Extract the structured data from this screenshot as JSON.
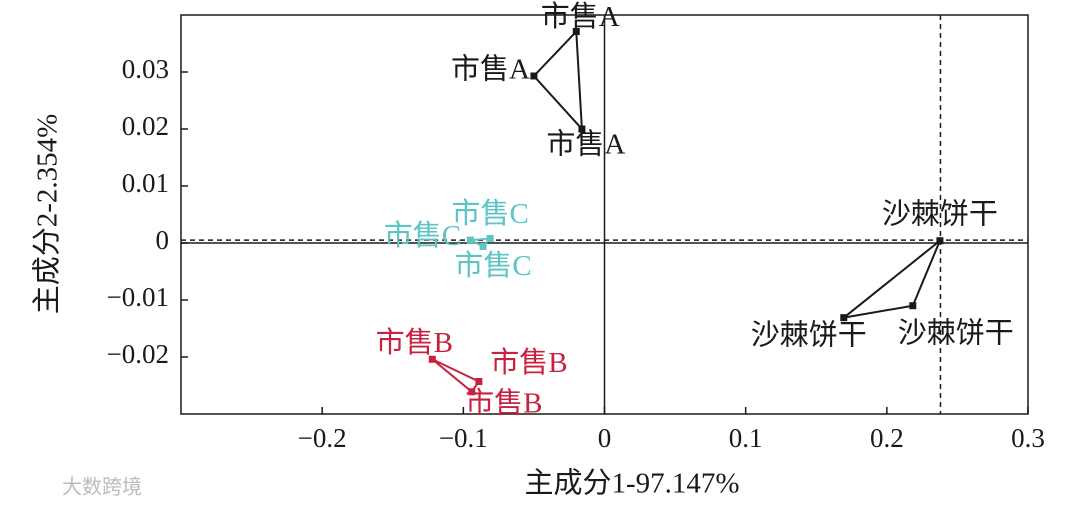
{
  "chart_data": {
    "type": "scatter",
    "x_label": "主成分1-97.147%",
    "y_label": "主成分2-2.354%",
    "xlim": [
      -0.3,
      0.3
    ],
    "ylim": [
      -0.03,
      0.04
    ],
    "xticks": [
      {
        "value": -0.2,
        "label": "−0.2"
      },
      {
        "value": -0.1,
        "label": "−0.1"
      },
      0,
      0.1,
      0.2,
      0.3
    ],
    "yticks": [
      {
        "value": -0.02,
        "label": "−0.02"
      },
      {
        "value": -0.01,
        "label": "−0.01"
      },
      0,
      0.01,
      0.02,
      0.03
    ],
    "reference_lines": {
      "x": 0.238,
      "y": 0.0005
    },
    "series": [
      {
        "color": "#1a1a1a",
        "labels": [
          "市售A",
          "市售A",
          "市售A"
        ],
        "x": [
          -0.02,
          -0.05,
          -0.016
        ],
        "values": [
          0.0371,
          0.0293,
          0.02
        ]
      },
      {
        "color": "#5bc4c4",
        "labels": [
          "市售C",
          "市售C",
          "市售C"
        ],
        "x": [
          -0.081,
          -0.095,
          -0.086
        ],
        "values": [
          0.0008,
          0.0005,
          -0.0006
        ]
      },
      {
        "color": "#c8213f",
        "labels": [
          "市售B",
          "市售B",
          "市售B"
        ],
        "x": [
          -0.122,
          -0.089,
          -0.094
        ],
        "values": [
          -0.0204,
          -0.0243,
          -0.0261
        ]
      },
      {
        "color": "#1a1a1a",
        "labels": [
          "沙棘饼干",
          "沙棘饼干",
          "沙棘饼干"
        ],
        "x": [
          0.2376,
          0.1695,
          0.2184
        ],
        "values": [
          0.0004,
          -0.0131,
          -0.011
        ]
      }
    ]
  },
  "watermark": "大数跨境"
}
